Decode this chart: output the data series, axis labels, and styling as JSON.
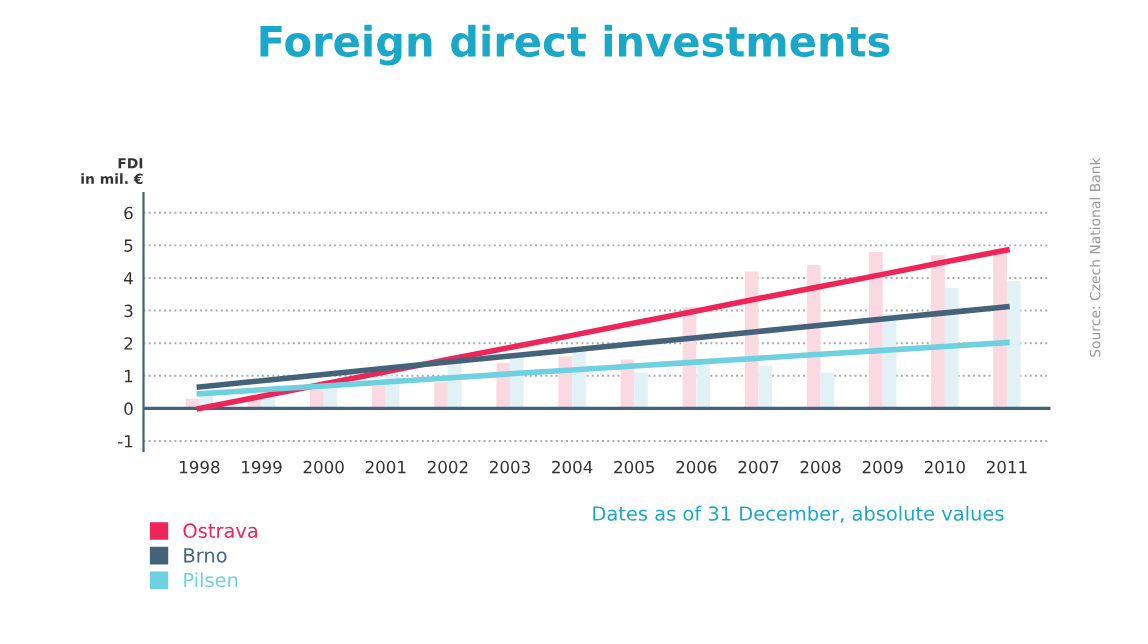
{
  "chart_data": {
    "type": "bar",
    "title": "Foreign direct investments",
    "ylabel": "FDI\nin mil. €",
    "categories": [
      "1998",
      "1999",
      "2000",
      "2001",
      "2002",
      "2003",
      "2004",
      "2005",
      "2006",
      "2007",
      "2008",
      "2009",
      "2010",
      "2011"
    ],
    "series": [
      {
        "color": "#fbd9e2",
        "values": [
          0.3,
          0.3,
          0.6,
          0.7,
          0.8,
          1.4,
          1.6,
          1.5,
          3.1,
          4.2,
          4.4,
          4.8,
          4.7,
          4.9
        ]
      },
      {
        "color": "#e2f1f5",
        "values": [
          0.4,
          0.4,
          0.7,
          1.0,
          1.4,
          1.6,
          1.8,
          1.1,
          1.4,
          1.3,
          1.1,
          2.9,
          3.7,
          3.9
        ]
      },
      {
        "type": "line",
        "name": "Ostrava",
        "color": "#ee2558",
        "values": [
          0.0,
          0.37,
          0.75,
          1.12,
          1.5,
          1.87,
          2.24,
          2.62,
          2.99,
          3.37,
          3.74,
          4.11,
          4.49,
          4.86
        ]
      },
      {
        "type": "line",
        "name": "Brno",
        "color": "#44637a",
        "values": [
          0.66,
          0.85,
          1.04,
          1.23,
          1.42,
          1.61,
          1.79,
          1.98,
          2.17,
          2.36,
          2.55,
          2.74,
          2.93,
          3.12
        ]
      },
      {
        "type": "line",
        "name": "Pilsen",
        "color": "#6fd0e0",
        "values": [
          0.45,
          0.57,
          0.69,
          0.81,
          0.93,
          1.06,
          1.18,
          1.3,
          1.42,
          1.54,
          1.66,
          1.78,
          1.9,
          2.02
        ]
      }
    ],
    "ylim": [
      -1.3,
      6.6
    ],
    "yticks": [
      -1,
      0,
      1,
      2,
      3,
      4,
      5,
      6
    ],
    "grid": "y",
    "legend": "bottom left",
    "line_style": "solid",
    "marker": "none",
    "ref_lines": [
      {
        "axis": "y",
        "value": 0,
        "color": "#44637a"
      }
    ],
    "annotations": [
      "Dates as of 31 December, absolute values",
      "Source: Czech National Bank"
    ]
  }
}
